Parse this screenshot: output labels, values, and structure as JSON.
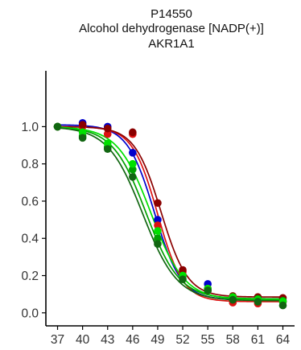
{
  "chart_data": {
    "type": "scatter",
    "title_lines": [
      "P14550",
      "Alcohol dehydrogenase [NADP(+)]",
      "AKR1A1"
    ],
    "xlabel": "",
    "ylabel": "",
    "x_ticks": [
      37,
      40,
      43,
      46,
      49,
      52,
      55,
      58,
      61,
      64
    ],
    "y_ticks": [
      0.0,
      0.2,
      0.4,
      0.6,
      0.8,
      1.0
    ],
    "xlim": [
      35.6,
      65.4
    ],
    "ylim": [
      -0.07,
      1.3
    ],
    "grid": false,
    "legend": "none",
    "series": [
      {
        "color": "#0000cc",
        "x": [
          37,
          40,
          43,
          46,
          49,
          52,
          55,
          58,
          61,
          64
        ],
        "y": [
          1.0,
          1.02,
          1.0,
          0.86,
          0.5,
          0.2,
          0.155,
          0.085,
          0.07,
          0.06
        ],
        "fit": {
          "tm": 48.6,
          "slope": 0.62,
          "top": 1.01,
          "bottom": 0.07
        }
      },
      {
        "color": "#dd1111",
        "x": [
          37,
          40,
          43,
          46,
          49,
          52,
          55,
          58,
          61,
          64
        ],
        "y": [
          1.0,
          1.0,
          0.96,
          0.96,
          0.47,
          0.22,
          0.12,
          0.055,
          0.05,
          0.06
        ],
        "fit": {
          "tm": 49.0,
          "slope": 0.66,
          "top": 1.0,
          "bottom": 0.06
        }
      },
      {
        "color": "#8b0000",
        "x": [
          37,
          40,
          43,
          46,
          49,
          52,
          55,
          58,
          61,
          64
        ],
        "y": [
          1.0,
          1.01,
          0.99,
          0.97,
          0.59,
          0.23,
          0.13,
          0.09,
          0.085,
          0.08
        ],
        "fit": {
          "tm": 49.4,
          "slope": 0.63,
          "top": 1.0,
          "bottom": 0.085
        }
      },
      {
        "color": "#00a000",
        "x": [
          37,
          40,
          43,
          46,
          49,
          52,
          55,
          58,
          61,
          64
        ],
        "y": [
          1.0,
          0.95,
          0.89,
          0.77,
          0.4,
          0.2,
          0.12,
          0.08,
          0.075,
          0.065
        ],
        "fit": {
          "tm": 47.6,
          "slope": 0.5,
          "top": 1.0,
          "bottom": 0.075
        }
      },
      {
        "color": "#00e000",
        "x": [
          37,
          40,
          43,
          46,
          49,
          52,
          55,
          58,
          61,
          64
        ],
        "y": [
          1.0,
          0.97,
          0.91,
          0.8,
          0.44,
          0.2,
          0.13,
          0.085,
          0.07,
          0.06
        ],
        "fit": {
          "tm": 48.2,
          "slope": 0.5,
          "top": 1.0,
          "bottom": 0.07
        }
      },
      {
        "color": "#116611",
        "x": [
          37,
          40,
          43,
          46,
          49,
          52,
          55,
          58,
          61,
          64
        ],
        "y": [
          1.0,
          0.94,
          0.88,
          0.73,
          0.37,
          0.18,
          0.12,
          0.07,
          0.06,
          0.04
        ],
        "fit": {
          "tm": 47.2,
          "slope": 0.48,
          "top": 1.0,
          "bottom": 0.065
        }
      }
    ]
  }
}
